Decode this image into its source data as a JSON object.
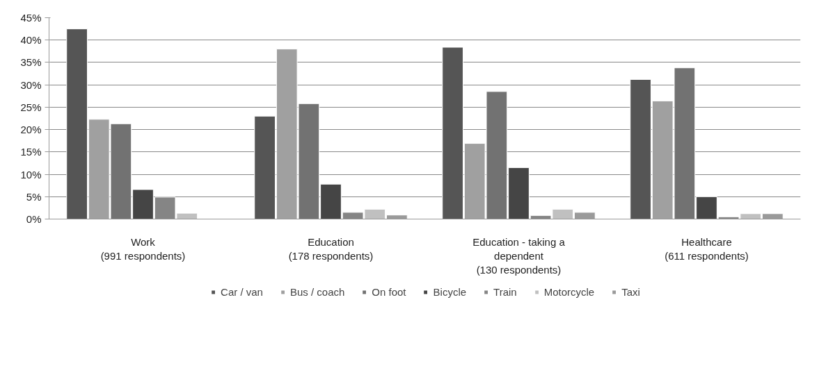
{
  "chart_data": {
    "type": "bar",
    "categories": [
      "Work\n(991 respondents)",
      "Education\n(178 respondents)",
      "Education - taking a\ndependent\n(130 respondents)",
      "Healthcare\n(611 respondents)"
    ],
    "series": [
      {
        "name": "Car / van",
        "color": "#555555",
        "values": [
          42.5,
          23.0,
          38.4,
          31.2
        ]
      },
      {
        "name": "Bus / coach",
        "color": "#a0a0a0",
        "values": [
          22.3,
          38.0,
          16.9,
          26.4
        ]
      },
      {
        "name": "On foot",
        "color": "#727272",
        "values": [
          21.3,
          25.8,
          28.5,
          33.8
        ]
      },
      {
        "name": "Bicycle",
        "color": "#454545",
        "values": [
          6.6,
          7.8,
          11.5,
          5.0
        ]
      },
      {
        "name": "Train",
        "color": "#858585",
        "values": [
          4.9,
          1.5,
          0.8,
          0.5
        ]
      },
      {
        "name": "Motorcycle",
        "color": "#c0c0c0",
        "values": [
          1.3,
          2.2,
          2.2,
          1.2
        ]
      },
      {
        "name": "Taxi",
        "color": "#9a9a9a",
        "values": [
          null,
          0.9,
          1.5,
          1.2
        ]
      }
    ],
    "ylim": [
      0,
      45
    ],
    "yticks": [
      {
        "value": 0,
        "label": "0%"
      },
      {
        "value": 5,
        "label": "5%"
      },
      {
        "value": 10,
        "label": "10%"
      },
      {
        "value": 15,
        "label": "15%"
      },
      {
        "value": 20,
        "label": "20%"
      },
      {
        "value": 25,
        "label": "25%"
      },
      {
        "value": 30,
        "label": "30%"
      },
      {
        "value": 35,
        "label": "35%"
      },
      {
        "value": 40,
        "label": "40%"
      },
      {
        "value": 45,
        "label": "45%"
      }
    ],
    "grid": "y",
    "legend": "bottom"
  }
}
